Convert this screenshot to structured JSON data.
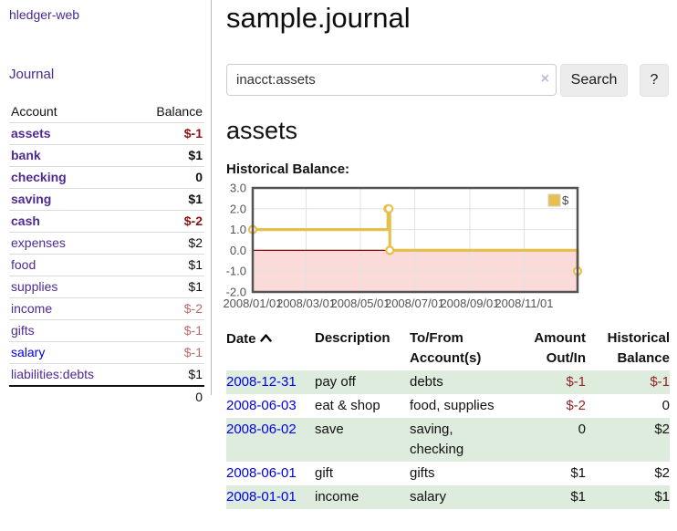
{
  "brand": "hledger-web",
  "nav": {
    "journal": "Journal"
  },
  "sidebar": {
    "header": {
      "account": "Account",
      "balance": "Balance"
    },
    "accounts": [
      {
        "name": "assets",
        "balance": "$-1"
      },
      {
        "name": "bank",
        "balance": "$1"
      },
      {
        "name": "checking",
        "balance": "0"
      },
      {
        "name": "saving",
        "balance": "$1"
      },
      {
        "name": "cash",
        "balance": "$-2"
      },
      {
        "name": "expenses",
        "balance": "$2"
      },
      {
        "name": "food",
        "balance": "$1"
      },
      {
        "name": "supplies",
        "balance": "$1"
      },
      {
        "name": "income",
        "balance": "$-2"
      },
      {
        "name": "gifts",
        "balance": "$-1"
      },
      {
        "name": "salary",
        "balance": "$-1"
      },
      {
        "name": "liabilities:debts",
        "balance": "$1"
      }
    ],
    "total": "0"
  },
  "header": {
    "title": "sample.journal"
  },
  "search": {
    "value": "inacct:assets",
    "clear_label": "×",
    "button_label": "Search",
    "help_label": "?"
  },
  "account_page": {
    "heading": "assets",
    "chart_label": "Historical Balance:"
  },
  "chart_data": {
    "type": "line",
    "step": true,
    "title": "Historical Balance",
    "series": [
      {
        "name": "$",
        "color": "#e7bf4c",
        "points": [
          [
            "2008-01-01",
            1
          ],
          [
            "2008-06-01",
            2
          ],
          [
            "2008-06-02",
            2
          ],
          [
            "2008-06-03",
            0
          ],
          [
            "2008-12-31",
            -1
          ]
        ]
      }
    ],
    "ylim": [
      -2,
      3
    ],
    "yticks": [
      3,
      2,
      1,
      0,
      -1,
      -2
    ],
    "ytick_labels": [
      "3.0",
      "2.0",
      "1.0",
      "0.0",
      "-1.0",
      "-2.0"
    ],
    "xdomain": [
      "2008-01-01",
      "2008-12-31"
    ],
    "xticks": [
      "2008-01-01",
      "2008-03-01",
      "2008-05-01",
      "2008-07-01",
      "2008-09-01",
      "2008-11-01"
    ],
    "xtick_labels": [
      "2008/01/01",
      "2008/03/01",
      "2008/05/01",
      "2008/07/01",
      "2008/09/01",
      "2008/11/01"
    ],
    "legend": {
      "label": "$",
      "position": "top-right"
    },
    "grid": true,
    "negative_fill": "#fbdada",
    "zero_line_color": "#8b0000",
    "border_color": "#545454"
  },
  "register": {
    "columns": [
      "Date",
      "Description",
      "To/From Account(s)",
      "Amount Out/In",
      "Historical Balance"
    ],
    "rows": [
      {
        "date": "2008-12-31",
        "description": "pay off",
        "accounts": "debts",
        "amount": "$-1",
        "balance": "$-1"
      },
      {
        "date": "2008-06-03",
        "description": "eat & shop",
        "accounts": "food, supplies",
        "amount": "$-2",
        "balance": "0"
      },
      {
        "date": "2008-06-02",
        "description": "save",
        "accounts": "saving, checking",
        "amount": "0",
        "balance": "$2"
      },
      {
        "date": "2008-06-01",
        "description": "gift",
        "accounts": "gifts",
        "amount": "$1",
        "balance": "$2"
      },
      {
        "date": "2008-01-01",
        "description": "income",
        "accounts": "salary",
        "amount": "$1",
        "balance": "$1"
      }
    ]
  }
}
